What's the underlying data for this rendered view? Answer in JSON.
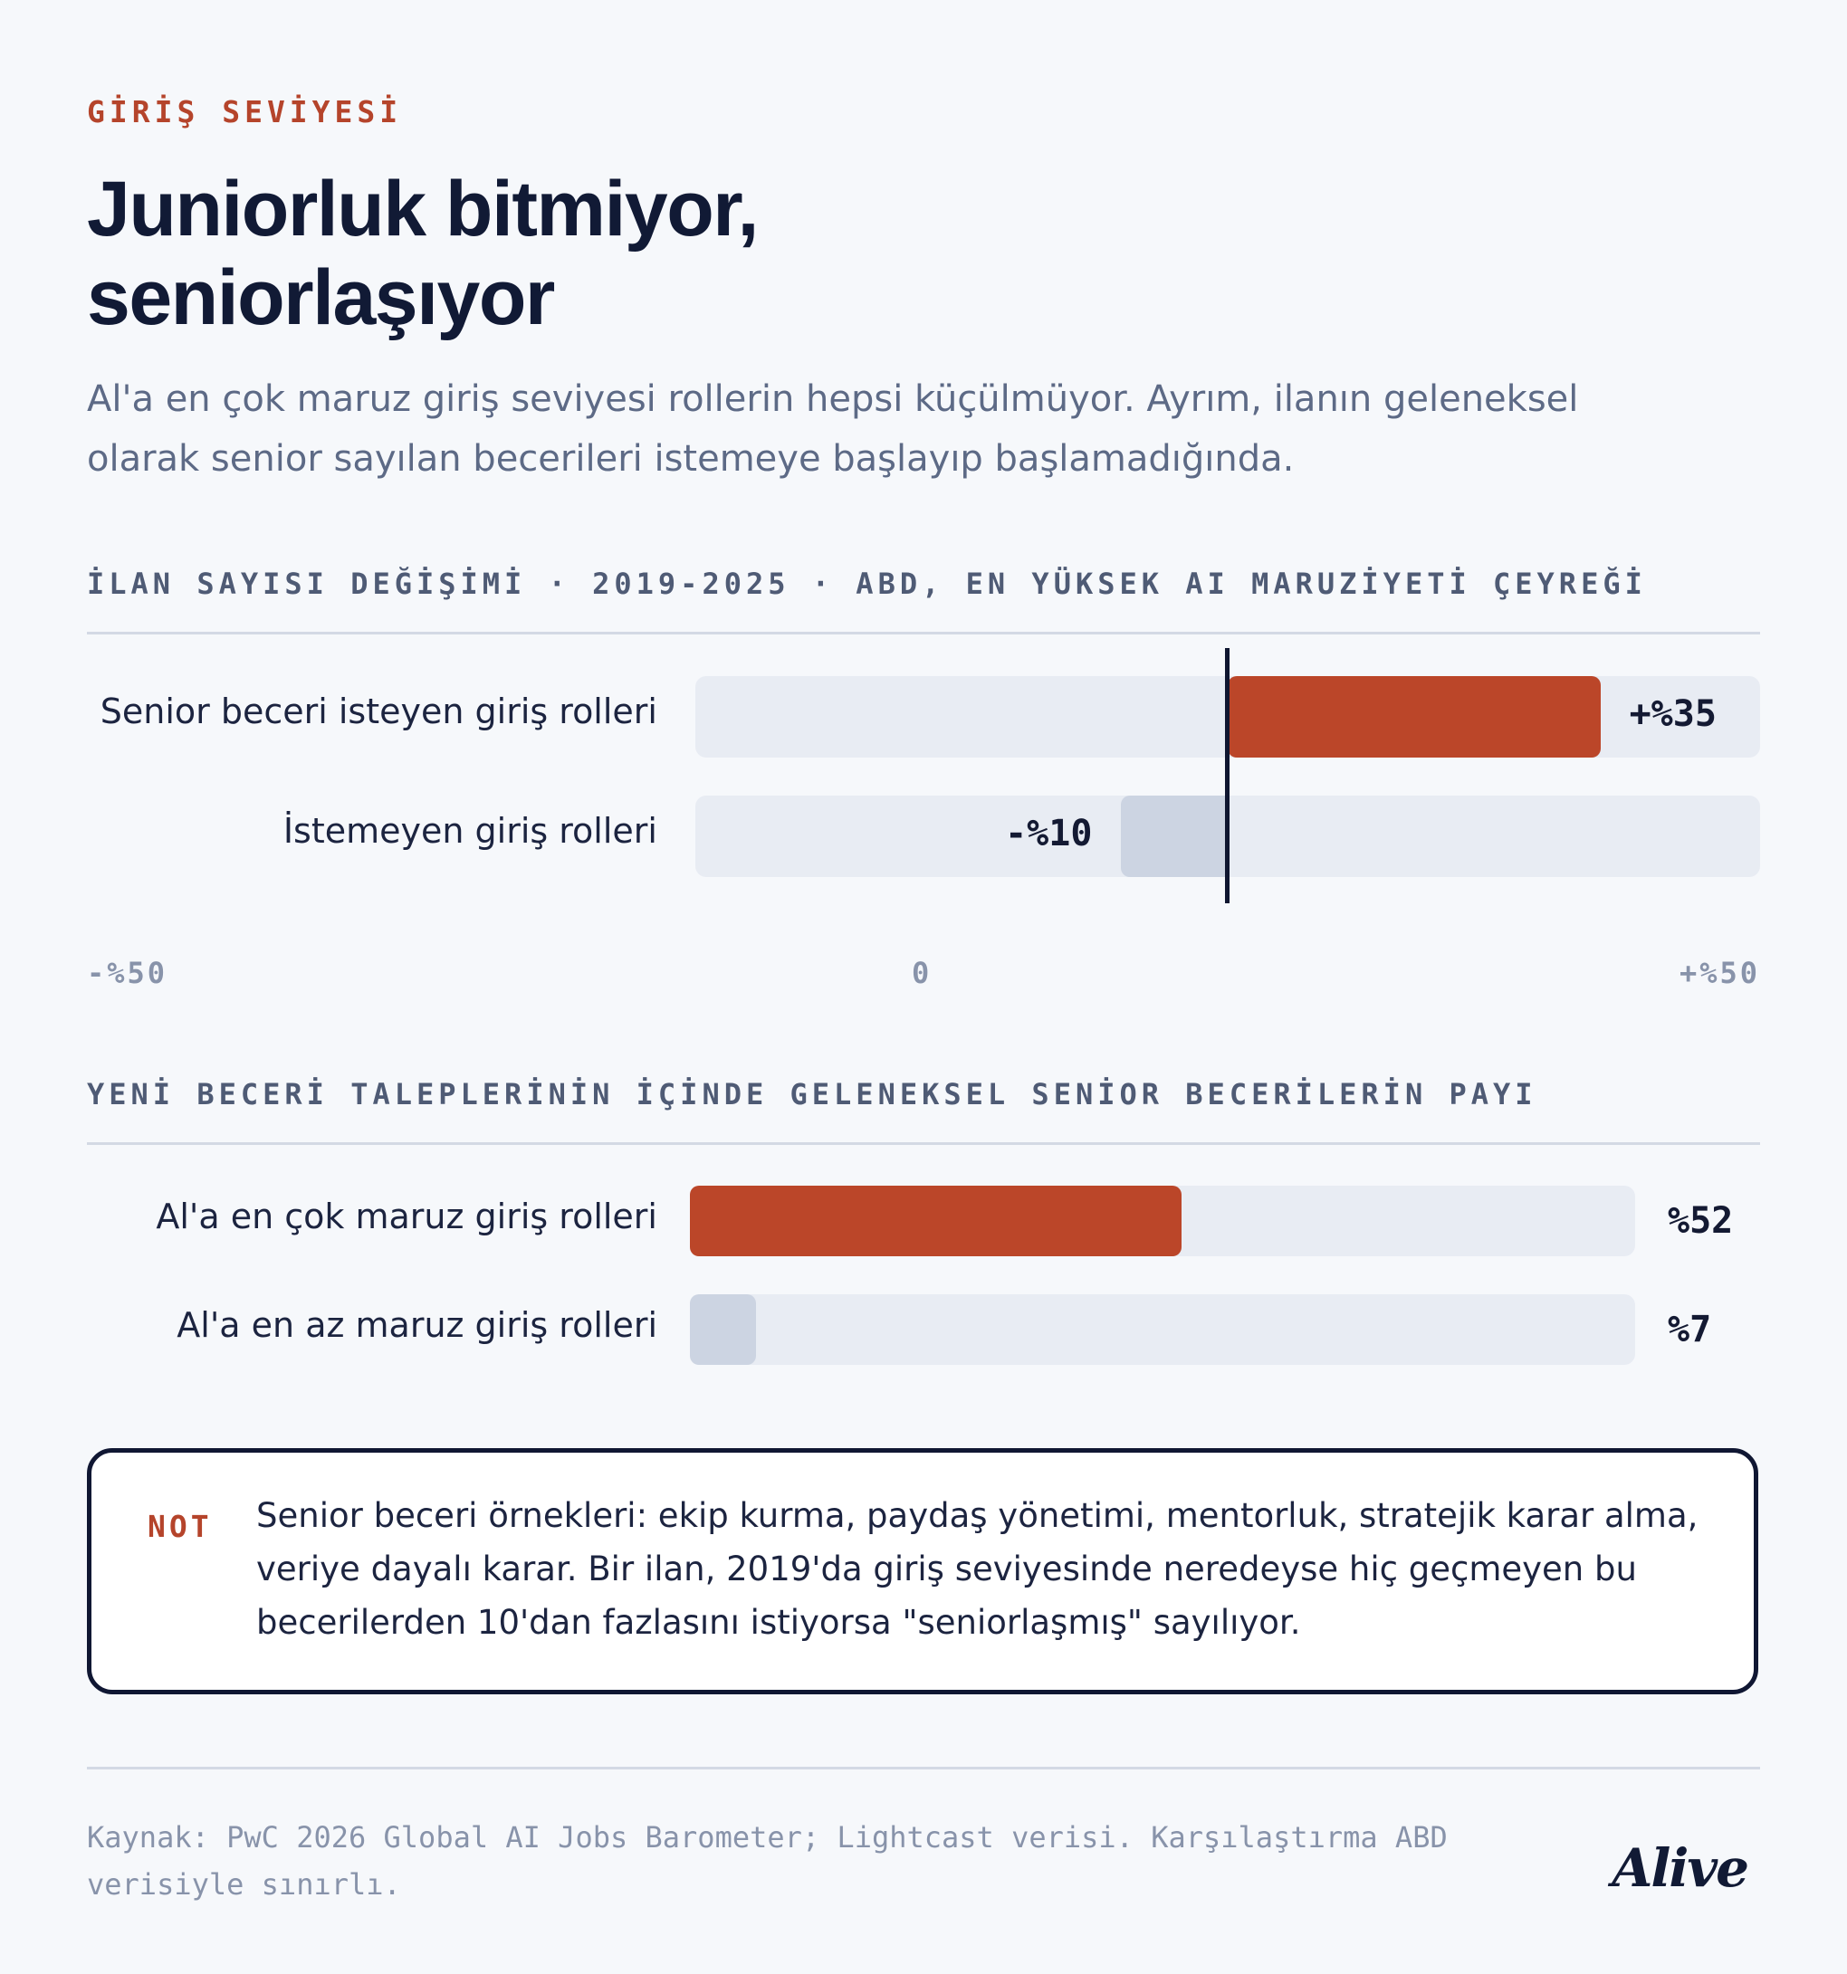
{
  "eyebrow": "GİRİŞ SEVİYESİ",
  "title": "Juniorluk bitmiyor, seniorlaşıyor",
  "subtitle": "Al'a en çok maruz giriş seviyesi rollerin hepsi küçülmüyor. Ayrım, ilanın geleneksel olarak senior sayılan becerileri istemeye başlayıp başlamadığında.",
  "colors": {
    "accent": "#bb4629",
    "muted_bar": "#ccd4e2",
    "track": "#e8ecf3",
    "ink": "#0f1630"
  },
  "chart_data": [
    {
      "type": "bar",
      "orientation": "horizontal",
      "title": "İLAN SAYISI DEĞİŞİMİ · 2019-2025 · ABD, EN YÜKSEK AI MARUZİYETİ ÇEYREĞİ",
      "categories": [
        "Senior beceri isteyen giriş rolleri",
        "İstemeyen giriş rolleri"
      ],
      "values": [
        35,
        -10
      ],
      "value_labels": [
        "+%35",
        "-%10"
      ],
      "xlim": [
        -50,
        50
      ],
      "x_ticks": [
        "-%50",
        "0",
        "+%50"
      ],
      "colors": [
        "#bb4629",
        "#ccd4e2"
      ]
    },
    {
      "type": "bar",
      "orientation": "horizontal",
      "title": "YENİ BECERİ TALEPLERİNİN İÇİNDE GELENEKSEL SENİOR BECERİLERİN PAYI",
      "categories": [
        "Al'a en çok maruz giriş rolleri",
        "Al'a en az maruz giriş rolleri"
      ],
      "values": [
        52,
        7
      ],
      "value_labels": [
        "%52",
        "%7"
      ],
      "xlim": [
        0,
        100
      ],
      "colors": [
        "#bb4629",
        "#ccd4e2"
      ]
    }
  ],
  "note": {
    "label": "NOT",
    "text": "Senior beceri örnekleri: ekip kurma, paydaş yönetimi, mentorluk, stratejik karar alma, veriye dayalı karar. Bir ilan, 2019'da giriş seviyesinde neredeyse hiç geçmeyen bu becerilerden 10'dan fazlasını istiyorsa \"seniorlaşmış\" sayılıyor."
  },
  "footer": {
    "source": "Kaynak: PwC 2026 Global AI Jobs Barometer; Lightcast verisi. Karşılaştırma ABD verisiyle sınırlı.",
    "brand": "Alive"
  }
}
